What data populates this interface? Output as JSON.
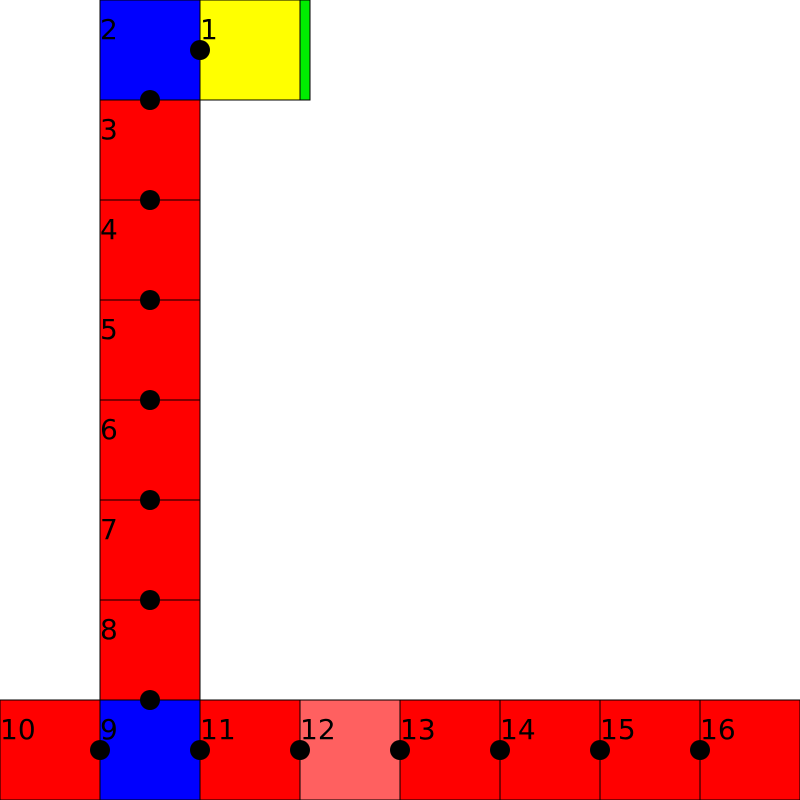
{
  "colors": {
    "red": "#ff0000",
    "blue": "#0000ff",
    "yellow": "#ffff00",
    "green": "#00ee00",
    "light_red": "#ff6060",
    "dot": "#000000",
    "border": "#000000"
  },
  "cells": [
    {
      "label": "1",
      "color": "yellow"
    },
    {
      "label": "2",
      "color": "blue"
    },
    {
      "label": "3",
      "color": "red"
    },
    {
      "label": "4",
      "color": "red"
    },
    {
      "label": "5",
      "color": "red"
    },
    {
      "label": "6",
      "color": "red"
    },
    {
      "label": "7",
      "color": "red"
    },
    {
      "label": "8",
      "color": "red"
    },
    {
      "label": "9",
      "color": "blue"
    },
    {
      "label": "10",
      "color": "red"
    },
    {
      "label": "11",
      "color": "red"
    },
    {
      "label": "12",
      "color": "light_red"
    },
    {
      "label": "13",
      "color": "red"
    },
    {
      "label": "14",
      "color": "red"
    },
    {
      "label": "15",
      "color": "red"
    },
    {
      "label": "16",
      "color": "red"
    }
  ],
  "strip": {
    "color": "green"
  }
}
